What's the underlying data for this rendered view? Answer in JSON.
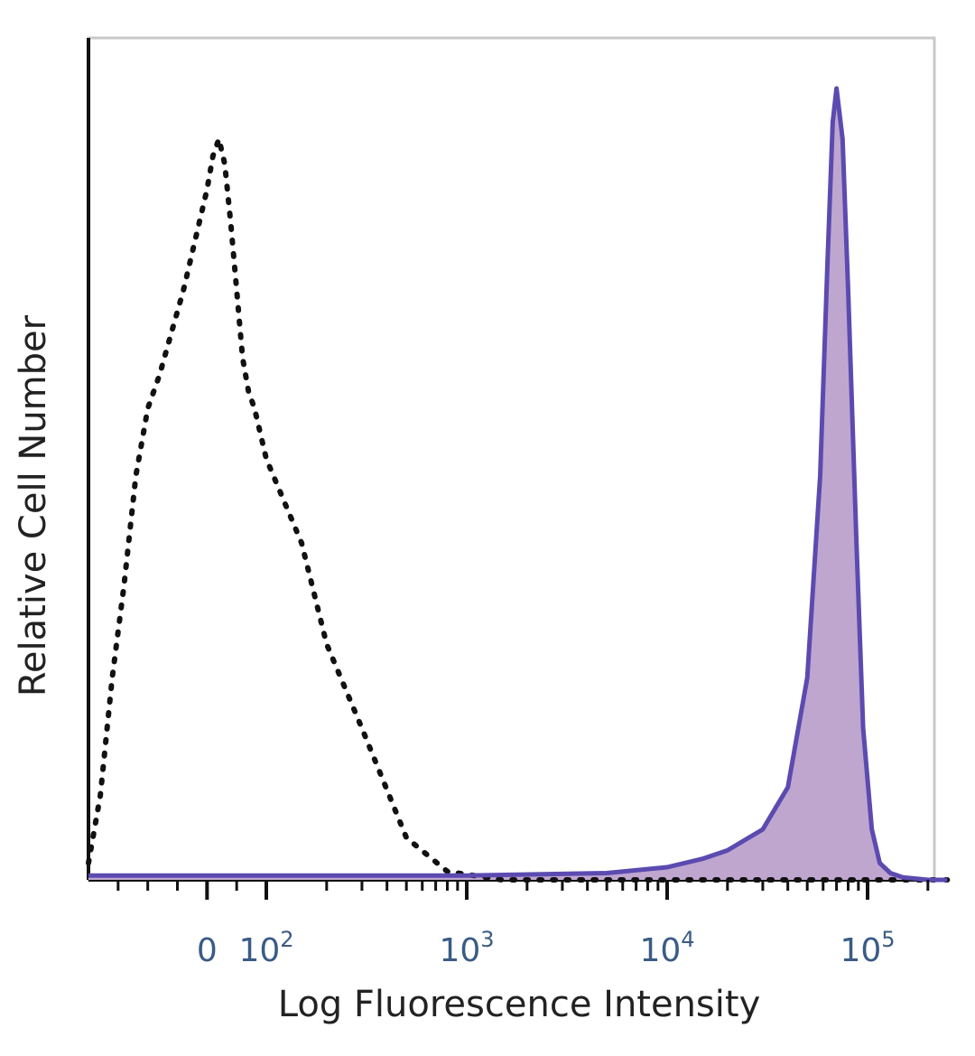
{
  "chart_data": {
    "type": "area",
    "title": "",
    "xlabel": "Log Fluorescence Intensity",
    "ylabel": "Relative Cell Number",
    "x_scale": "biexponential (linear near 0, log above 10^2)",
    "xlim": [
      -200,
      250000
    ],
    "ylim": [
      0,
      100
    ],
    "grid": false,
    "legend": "none",
    "x_ticks": [
      {
        "value": 0,
        "base": "0",
        "exp": ""
      },
      {
        "value": 100,
        "base": "10",
        "exp": "2"
      },
      {
        "value": 1000,
        "base": "10",
        "exp": "3"
      },
      {
        "value": 10000,
        "base": "10",
        "exp": "4"
      },
      {
        "value": 100000,
        "base": "10",
        "exp": "5"
      }
    ],
    "series": [
      {
        "style": "dotted-outline",
        "color": "#111111",
        "points": [
          [
            -200,
            2
          ],
          [
            -180,
            10
          ],
          [
            -160,
            24
          ],
          [
            -140,
            35
          ],
          [
            -120,
            48
          ],
          [
            -100,
            56
          ],
          [
            -80,
            60
          ],
          [
            -60,
            65
          ],
          [
            -40,
            70
          ],
          [
            -20,
            76
          ],
          [
            0,
            82
          ],
          [
            10,
            86
          ],
          [
            20,
            88
          ],
          [
            30,
            85
          ],
          [
            40,
            78
          ],
          [
            50,
            70
          ],
          [
            60,
            62
          ],
          [
            70,
            58
          ],
          [
            80,
            56
          ],
          [
            100,
            50
          ],
          [
            150,
            40
          ],
          [
            200,
            28
          ],
          [
            300,
            18
          ],
          [
            500,
            5
          ],
          [
            800,
            1
          ],
          [
            1500,
            0
          ],
          [
            5000,
            0
          ],
          [
            250000,
            0
          ]
        ]
      },
      {
        "style": "filled",
        "color": "#5b4bb0",
        "fill": "#bfa6cf",
        "points": [
          [
            -200,
            0.5
          ],
          [
            1000,
            0.5
          ],
          [
            5000,
            0.8
          ],
          [
            10000,
            1.5
          ],
          [
            15000,
            2.5
          ],
          [
            20000,
            3.5
          ],
          [
            30000,
            6
          ],
          [
            40000,
            11
          ],
          [
            50000,
            24
          ],
          [
            58000,
            48
          ],
          [
            63000,
            73
          ],
          [
            67000,
            90
          ],
          [
            70000,
            94
          ],
          [
            75000,
            88
          ],
          [
            80000,
            70
          ],
          [
            88000,
            40
          ],
          [
            95000,
            18
          ],
          [
            105000,
            6
          ],
          [
            115000,
            2
          ],
          [
            130000,
            0.8
          ],
          [
            150000,
            0.3
          ],
          [
            200000,
            0
          ],
          [
            250000,
            0
          ]
        ]
      }
    ]
  }
}
